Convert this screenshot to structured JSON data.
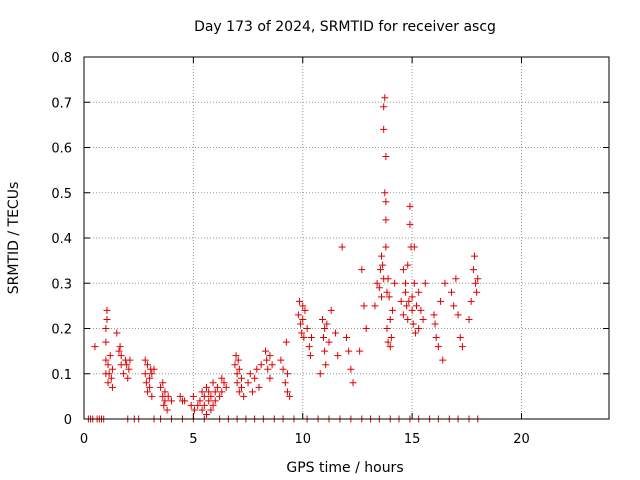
{
  "chart_data": {
    "type": "scatter",
    "title": "Day 173 of 2024, SRMTID for receiver ascg",
    "xlabel": "GPS time / hours",
    "ylabel": "SRMTID / TECUs",
    "xlim": [
      0,
      24
    ],
    "ylim": [
      0,
      0.8
    ],
    "x_ticks": [
      0,
      5,
      10,
      15,
      20
    ],
    "y_ticks": [
      0,
      0.1,
      0.2,
      0.3,
      0.4,
      0.5,
      0.6,
      0.7,
      0.8
    ],
    "x_tick_labels": [
      "0",
      "5",
      "10",
      "15",
      "20"
    ],
    "y_tick_labels": [
      "0",
      "0.1",
      "0.2",
      "0.3",
      "0.4",
      "0.5",
      "0.6",
      "0.7",
      "0.8"
    ],
    "grid": true,
    "marker": "+",
    "color": "#dd0000",
    "series": [
      {
        "name": "SRMTID",
        "points": [
          [
            0.5,
            0.16
          ],
          [
            0.2,
            0
          ],
          [
            0.3,
            0
          ],
          [
            0.4,
            0
          ],
          [
            0.6,
            0
          ],
          [
            0.7,
            0
          ],
          [
            0.8,
            0
          ],
          [
            0.9,
            0
          ],
          [
            1.0,
            0.1
          ],
          [
            1.0,
            0.13
          ],
          [
            1.0,
            0.17
          ],
          [
            1.0,
            0.2
          ],
          [
            1.05,
            0.22
          ],
          [
            1.05,
            0.24
          ],
          [
            1.1,
            0.08
          ],
          [
            1.1,
            0.12
          ],
          [
            1.15,
            0.1
          ],
          [
            1.2,
            0.14
          ],
          [
            1.25,
            0.09
          ],
          [
            1.3,
            0.07
          ],
          [
            1.3,
            0.11
          ],
          [
            1.5,
            0.19
          ],
          [
            1.6,
            0.15
          ],
          [
            1.65,
            0.16
          ],
          [
            1.7,
            0.14
          ],
          [
            1.7,
            0.12
          ],
          [
            1.8,
            0.1
          ],
          [
            1.9,
            0.13
          ],
          [
            1.95,
            0.12
          ],
          [
            2.0,
            0.09
          ],
          [
            2.05,
            0.11
          ],
          [
            2.1,
            0.13
          ],
          [
            2.8,
            0.13
          ],
          [
            2.8,
            0.1
          ],
          [
            2.85,
            0.08
          ],
          [
            2.9,
            0.06
          ],
          [
            2.9,
            0.12
          ],
          [
            3.0,
            0.09
          ],
          [
            3.0,
            0.07
          ],
          [
            3.05,
            0.11
          ],
          [
            3.1,
            0.05
          ],
          [
            3.1,
            0.1
          ],
          [
            3.2,
            0.11
          ],
          [
            3.5,
            0.07
          ],
          [
            3.6,
            0.05
          ],
          [
            3.6,
            0.08
          ],
          [
            3.65,
            0.03
          ],
          [
            3.7,
            0.04
          ],
          [
            3.7,
            0.06
          ],
          [
            3.8,
            0.02
          ],
          [
            3.85,
            0.05
          ],
          [
            4.0,
            0.04
          ],
          [
            4.4,
            0.05
          ],
          [
            4.5,
            0.04
          ],
          [
            4.6,
            0.04
          ],
          [
            4.9,
            0.03
          ],
          [
            5.0,
            0.05
          ],
          [
            5.05,
            0.02
          ],
          [
            5.2,
            0.03
          ],
          [
            5.3,
            0.04
          ],
          [
            5.4,
            0.06
          ],
          [
            5.4,
            0.02
          ],
          [
            5.5,
            0.05
          ],
          [
            5.5,
            0.03
          ],
          [
            5.6,
            0.07
          ],
          [
            5.6,
            0.01
          ],
          [
            5.7,
            0.04
          ],
          [
            5.7,
            0.06
          ],
          [
            5.8,
            0.02
          ],
          [
            5.8,
            0.05
          ],
          [
            5.9,
            0.08
          ],
          [
            5.9,
            0.03
          ],
          [
            6.0,
            0.06
          ],
          [
            6.0,
            0.04
          ],
          [
            6.1,
            0.07
          ],
          [
            6.2,
            0.05
          ],
          [
            6.3,
            0.09
          ],
          [
            6.3,
            0.06
          ],
          [
            6.4,
            0.08
          ],
          [
            6.5,
            0.07
          ],
          [
            6.9,
            0.12
          ],
          [
            6.95,
            0.14
          ],
          [
            7.0,
            0.08
          ],
          [
            7.0,
            0.1
          ],
          [
            7.05,
            0.13
          ],
          [
            7.1,
            0.06
          ],
          [
            7.1,
            0.11
          ],
          [
            7.2,
            0.09
          ],
          [
            7.2,
            0.07
          ],
          [
            7.3,
            0.05
          ],
          [
            7.5,
            0.08
          ],
          [
            7.6,
            0.1
          ],
          [
            7.7,
            0.06
          ],
          [
            7.8,
            0.09
          ],
          [
            7.9,
            0.11
          ],
          [
            8.0,
            0.07
          ],
          [
            8.1,
            0.12
          ],
          [
            8.3,
            0.15
          ],
          [
            8.35,
            0.13
          ],
          [
            8.4,
            0.11
          ],
          [
            8.5,
            0.09
          ],
          [
            8.5,
            0.14
          ],
          [
            8.6,
            0.12
          ],
          [
            9.0,
            0.13
          ],
          [
            9.1,
            0.11
          ],
          [
            9.2,
            0.08
          ],
          [
            9.25,
            0.17
          ],
          [
            9.3,
            0.06
          ],
          [
            9.3,
            0.1
          ],
          [
            9.4,
            0.05
          ],
          [
            9.8,
            0.23
          ],
          [
            9.85,
            0.26
          ],
          [
            9.9,
            0.21
          ],
          [
            9.95,
            0.19
          ],
          [
            10.0,
            0.25
          ],
          [
            10.0,
            0.22
          ],
          [
            10.05,
            0.18
          ],
          [
            10.1,
            0.24
          ],
          [
            10.2,
            0.2
          ],
          [
            10.3,
            0.16
          ],
          [
            10.35,
            0.14
          ],
          [
            10.4,
            0.18
          ],
          [
            10.8,
            0.1
          ],
          [
            10.9,
            0.22
          ],
          [
            10.95,
            0.18
          ],
          [
            11.0,
            0.2
          ],
          [
            11.0,
            0.15
          ],
          [
            11.05,
            0.12
          ],
          [
            11.1,
            0.21
          ],
          [
            11.2,
            0.17
          ],
          [
            11.3,
            0.24
          ],
          [
            11.5,
            0.19
          ],
          [
            11.6,
            0.14
          ],
          [
            11.8,
            0.38
          ],
          [
            12.0,
            0.18
          ],
          [
            12.1,
            0.15
          ],
          [
            12.2,
            0.11
          ],
          [
            12.3,
            0.08
          ],
          [
            12.6,
            0.15
          ],
          [
            12.7,
            0.33
          ],
          [
            12.8,
            0.25
          ],
          [
            12.9,
            0.2
          ],
          [
            13.3,
            0.25
          ],
          [
            13.4,
            0.3
          ],
          [
            13.5,
            0.29
          ],
          [
            13.55,
            0.33
          ],
          [
            13.6,
            0.36
          ],
          [
            13.6,
            0.27
          ],
          [
            13.65,
            0.34
          ],
          [
            13.7,
            0.31
          ],
          [
            13.7,
            0.64
          ],
          [
            13.7,
            0.69
          ],
          [
            13.75,
            0.71
          ],
          [
            13.75,
            0.5
          ],
          [
            13.8,
            0.58
          ],
          [
            13.8,
            0.48
          ],
          [
            13.8,
            0.44
          ],
          [
            13.8,
            0.38
          ],
          [
            13.85,
            0.28
          ],
          [
            13.85,
            0.2
          ],
          [
            13.9,
            0.31
          ],
          [
            13.9,
            0.17
          ],
          [
            13.95,
            0.27
          ],
          [
            14.0,
            0.16
          ],
          [
            14.0,
            0.22
          ],
          [
            14.05,
            0.18
          ],
          [
            14.1,
            0.24
          ],
          [
            14.2,
            0.3
          ],
          [
            14.5,
            0.26
          ],
          [
            14.6,
            0.33
          ],
          [
            14.6,
            0.23
          ],
          [
            14.7,
            0.3
          ],
          [
            14.7,
            0.28
          ],
          [
            14.75,
            0.25
          ],
          [
            14.8,
            0.34
          ],
          [
            14.8,
            0.22
          ],
          [
            14.85,
            0.26
          ],
          [
            14.9,
            0.47
          ],
          [
            14.9,
            0.43
          ],
          [
            14.95,
            0.38
          ],
          [
            15.0,
            0.27
          ],
          [
            15.0,
            0.24
          ],
          [
            15.05,
            0.21
          ],
          [
            15.1,
            0.38
          ],
          [
            15.1,
            0.3
          ],
          [
            15.15,
            0.19
          ],
          [
            15.2,
            0.25
          ],
          [
            15.3,
            0.28
          ],
          [
            15.3,
            0.2
          ],
          [
            15.4,
            0.24
          ],
          [
            15.5,
            0.22
          ],
          [
            15.6,
            0.3
          ],
          [
            16.0,
            0.23
          ],
          [
            16.05,
            0.21
          ],
          [
            16.1,
            0.18
          ],
          [
            16.2,
            0.16
          ],
          [
            16.3,
            0.26
          ],
          [
            16.4,
            0.13
          ],
          [
            16.5,
            0.3
          ],
          [
            16.8,
            0.28
          ],
          [
            16.9,
            0.25
          ],
          [
            17.0,
            0.31
          ],
          [
            17.1,
            0.23
          ],
          [
            17.2,
            0.18
          ],
          [
            17.3,
            0.16
          ],
          [
            17.6,
            0.22
          ],
          [
            17.7,
            0.26
          ],
          [
            17.8,
            0.33
          ],
          [
            17.85,
            0.36
          ],
          [
            17.9,
            0.3
          ],
          [
            17.95,
            0.28
          ],
          [
            18.0,
            0.31
          ],
          [
            2.0,
            0
          ],
          [
            2.3,
            0
          ],
          [
            2.5,
            0
          ],
          [
            3.2,
            0
          ],
          [
            3.5,
            0
          ],
          [
            4.0,
            0
          ],
          [
            4.5,
            0
          ],
          [
            5.0,
            0
          ],
          [
            5.5,
            0
          ],
          [
            6.2,
            0
          ],
          [
            6.6,
            0
          ],
          [
            7.0,
            0
          ],
          [
            7.4,
            0
          ],
          [
            7.8,
            0
          ],
          [
            8.2,
            0
          ],
          [
            8.7,
            0
          ],
          [
            9.1,
            0
          ],
          [
            9.6,
            0
          ],
          [
            10.2,
            0
          ],
          [
            10.7,
            0
          ],
          [
            11.2,
            0
          ],
          [
            11.7,
            0
          ],
          [
            12.2,
            0
          ],
          [
            12.7,
            0
          ],
          [
            13.1,
            0
          ],
          [
            13.5,
            0
          ],
          [
            14.0,
            0
          ],
          [
            14.4,
            0
          ],
          [
            14.9,
            0
          ],
          [
            15.3,
            0
          ],
          [
            15.8,
            0
          ],
          [
            16.2,
            0
          ],
          [
            16.7,
            0
          ],
          [
            17.1,
            0
          ],
          [
            17.6,
            0
          ],
          [
            18.0,
            0
          ]
        ]
      }
    ]
  }
}
